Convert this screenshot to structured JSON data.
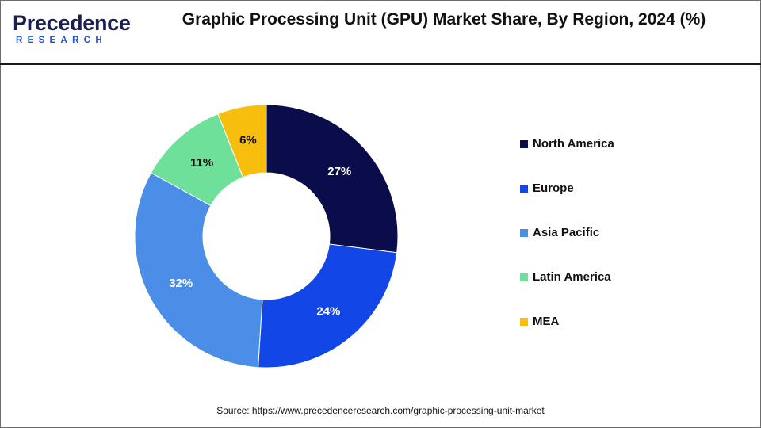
{
  "brand": {
    "logo_text": "Precedence",
    "logo_subtext": "RESEARCH",
    "colors": {
      "primary": "#1a2150",
      "accent": "#1f4fd8"
    }
  },
  "header": {
    "title": "Graphic Processing Unit (GPU) Market Share, By Region, 2024 (%)"
  },
  "chart_data": {
    "type": "pie",
    "subtype": "donut",
    "title": "Graphic Processing Unit (GPU) Market Share, By Region, 2024 (%)",
    "categories": [
      "North America",
      "Europe",
      "Asia Pacific",
      "Latin America",
      "MEA"
    ],
    "values": [
      27,
      24,
      32,
      11,
      6
    ],
    "labels": [
      "27%",
      "24%",
      "32%",
      "11%",
      "6%"
    ],
    "colors": [
      "#0b0c4a",
      "#1246e6",
      "#4a8ee8",
      "#6ee09a",
      "#f7be0d"
    ],
    "label_colors": [
      "#ffffff",
      "#ffffff",
      "#ffffff",
      "#111111",
      "#111111"
    ],
    "unit": "%",
    "legend_position": "right"
  },
  "footer": {
    "source": "Source: https://www.precedenceresearch.com/graphic-processing-unit-market"
  }
}
